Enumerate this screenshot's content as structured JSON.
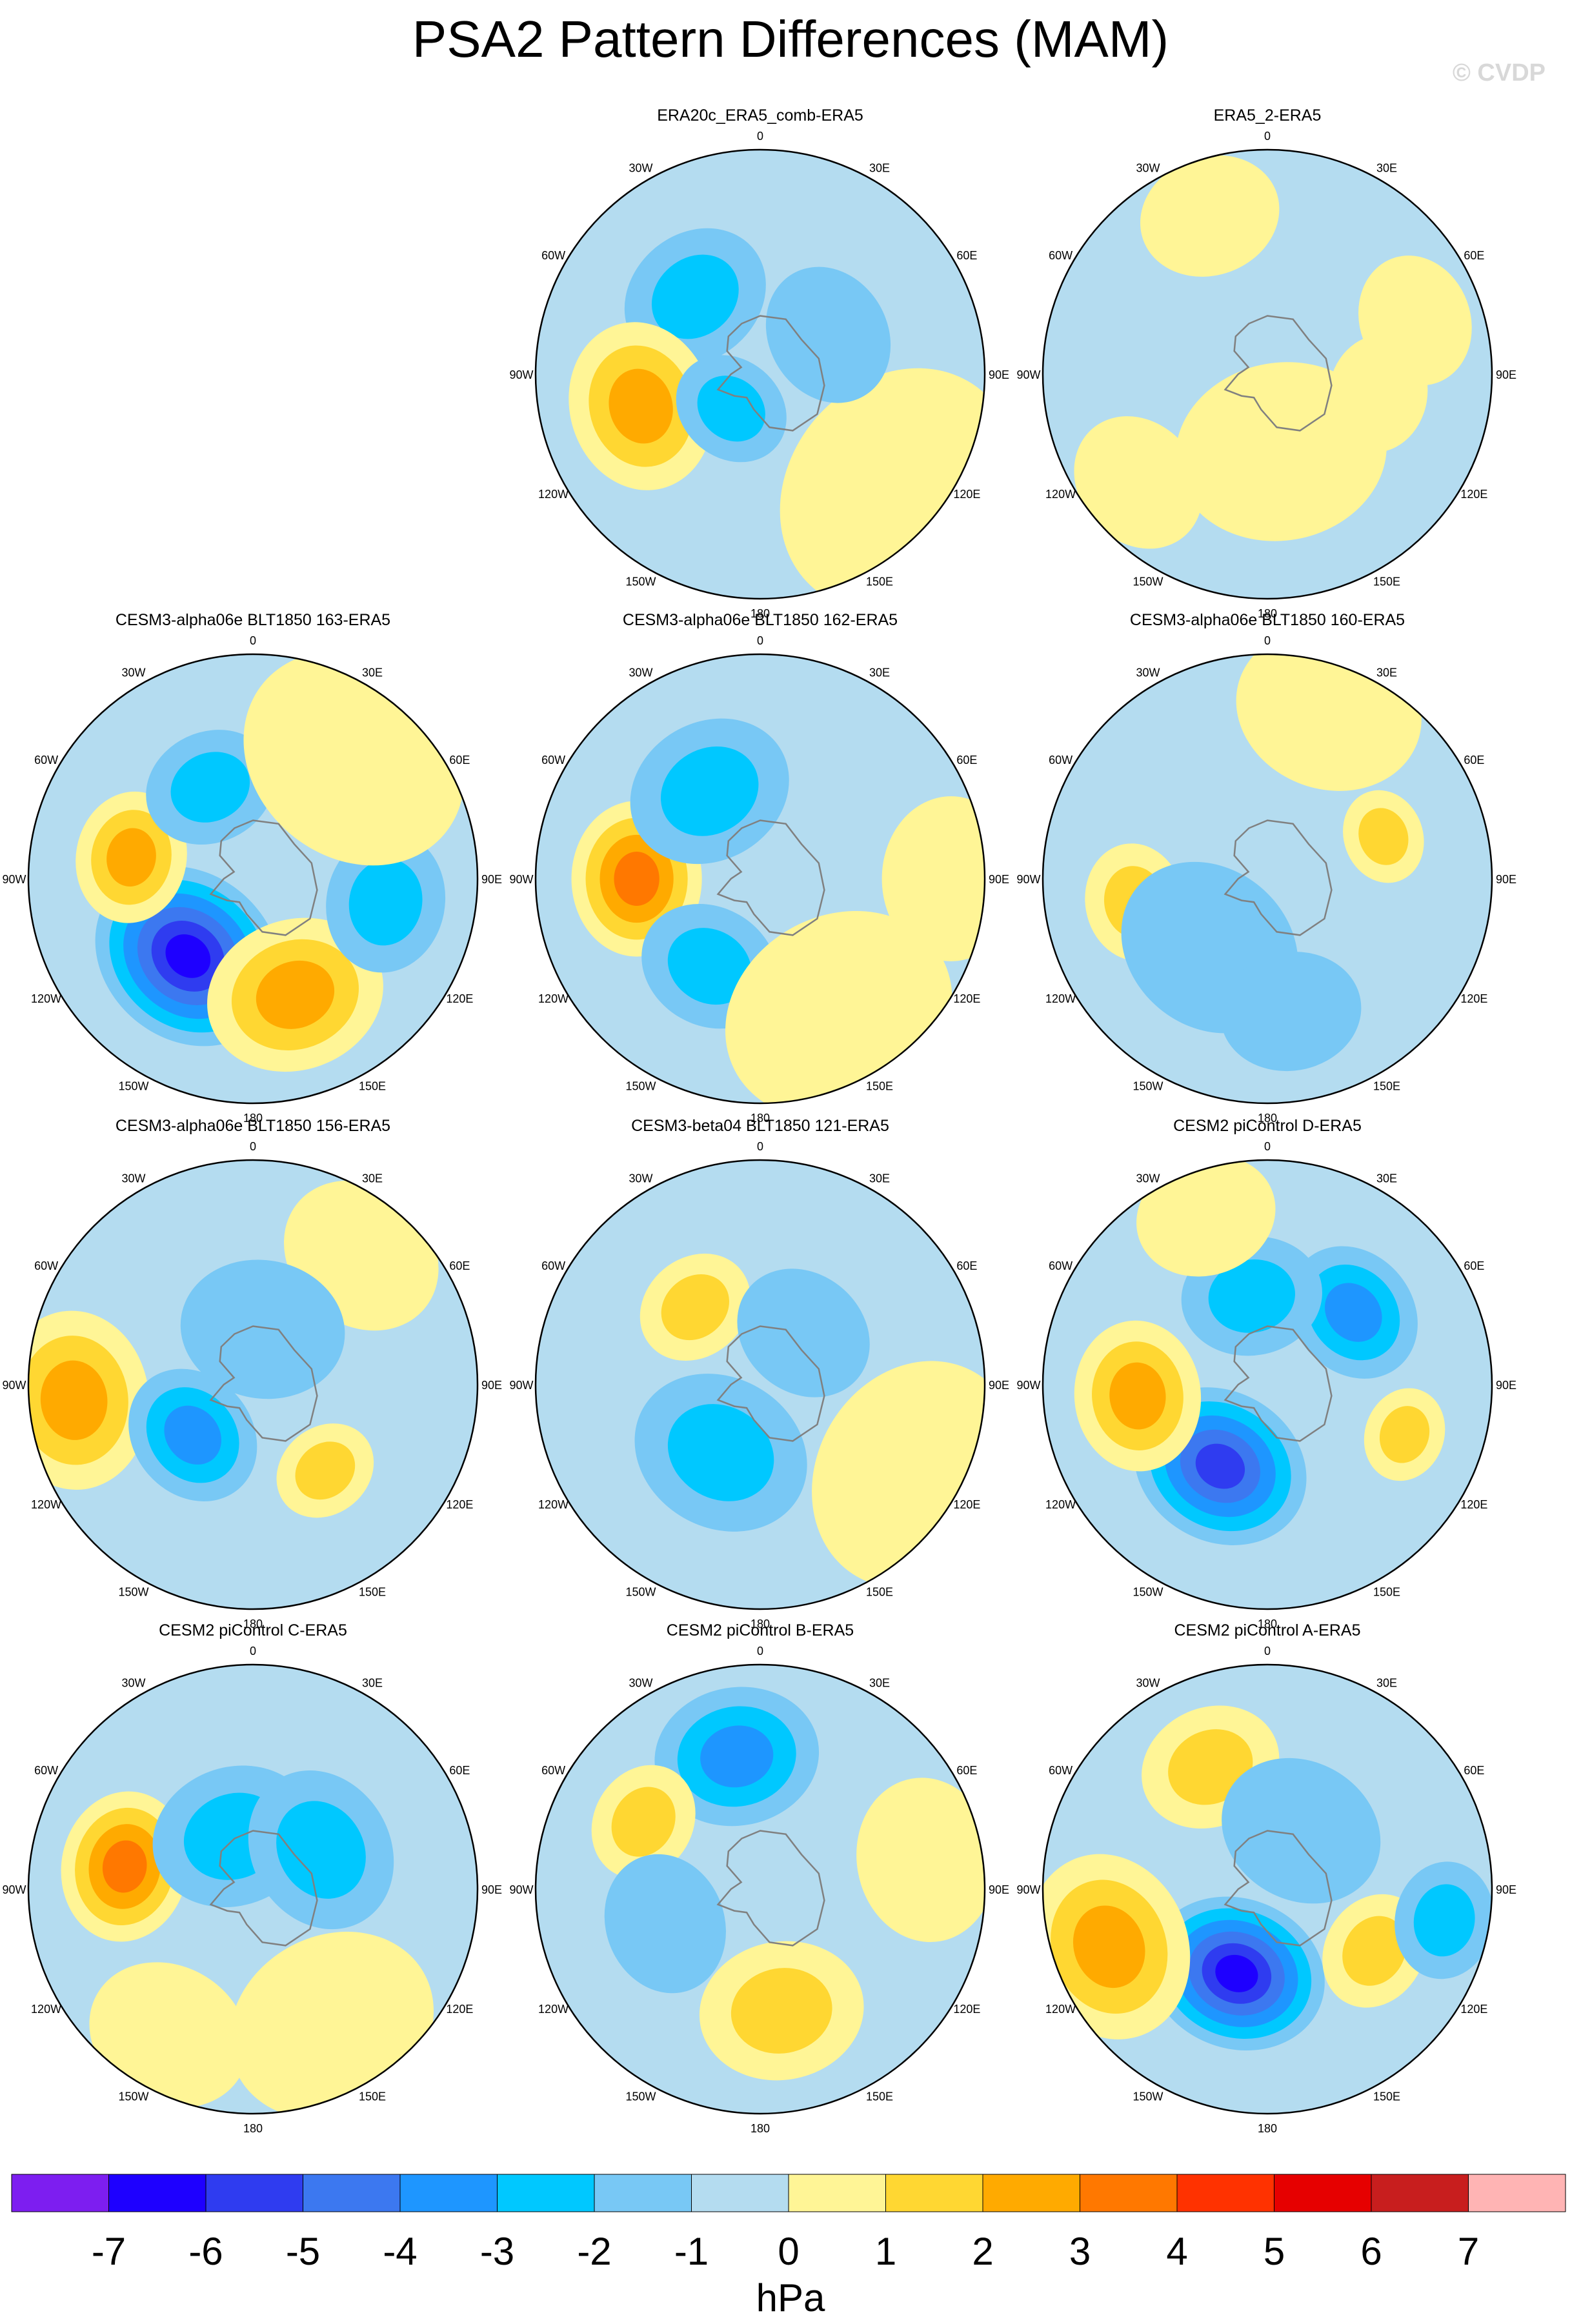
{
  "title": "PSA2 Pattern Differences (MAM)",
  "watermark": "© CVDP",
  "colorbar": {
    "unit": "hPa",
    "ticks": [
      "-7",
      "-6",
      "-5",
      "-4",
      "-3",
      "-2",
      "-1",
      "0",
      "1",
      "2",
      "3",
      "4",
      "5",
      "6",
      "7"
    ],
    "colors": [
      "#7d1ef0",
      "#1e00ff",
      "#2f3cf0",
      "#3c78f0",
      "#1e96ff",
      "#00c8ff",
      "#78c8f5",
      "#b4dcf0",
      "#fff596",
      "#ffd732",
      "#ffaa00",
      "#ff7800",
      "#ff3200",
      "#e60000",
      "#c81e1e",
      "#ffb4b4"
    ]
  },
  "lon_labels": [
    "0",
    "30E",
    "60E",
    "90E",
    "120E",
    "150E",
    "180",
    "150W",
    "120W",
    "90W",
    "60W",
    "30W"
  ],
  "chart_data": [
    {
      "type": "heatmap",
      "title": "ERA20c_ERA5_comb-ERA5",
      "position": [
        0,
        1
      ],
      "blobs": [
        [
          -2,
          0.45,
          -40,
          0.32
        ],
        [
          3,
          0.55,
          -105,
          0.36
        ],
        [
          -2,
          0.2,
          -140,
          0.25
        ],
        [
          1,
          0.8,
          130,
          0.55
        ],
        [
          -1,
          0.35,
          60,
          0.3
        ]
      ]
    },
    {
      "type": "heatmap",
      "title": "ERA5_2-ERA5",
      "position": [
        0,
        2
      ],
      "blobs": [
        [
          1,
          0.75,
          -20,
          0.3
        ],
        [
          1,
          0.7,
          70,
          0.28
        ],
        [
          1,
          0.35,
          170,
          0.45
        ],
        [
          1,
          0.75,
          -130,
          0.3
        ],
        [
          1,
          0.5,
          100,
          0.25
        ]
      ]
    },
    {
      "type": "heatmap",
      "title": "CESM3-alpha06e BLT1850 163-ERA5",
      "position": [
        1,
        0
      ],
      "blobs": [
        [
          -6,
          0.45,
          -140,
          0.42
        ],
        [
          3,
          0.55,
          -80,
          0.28
        ],
        [
          3,
          0.55,
          160,
          0.38
        ],
        [
          -2,
          0.45,
          -25,
          0.28
        ],
        [
          -2,
          0.6,
          100,
          0.3
        ],
        [
          1,
          0.7,
          40,
          0.5
        ]
      ]
    },
    {
      "type": "heatmap",
      "title": "CESM3-alpha06e BLT1850 162-ERA5",
      "position": [
        1,
        1
      ],
      "blobs": [
        [
          4,
          0.55,
          -90,
          0.33
        ],
        [
          -2,
          0.45,
          -30,
          0.35
        ],
        [
          -2,
          0.45,
          -150,
          0.3
        ],
        [
          1,
          0.7,
          150,
          0.5
        ],
        [
          1,
          0.85,
          90,
          0.35
        ]
      ]
    },
    {
      "type": "heatmap",
      "title": "CESM3-alpha06e BLT1850 160-ERA5",
      "position": [
        1,
        2
      ],
      "blobs": [
        [
          2,
          0.6,
          -100,
          0.25
        ],
        [
          2,
          0.55,
          70,
          0.2
        ],
        [
          -1,
          0.4,
          -140,
          0.4
        ],
        [
          -1,
          0.6,
          170,
          0.3
        ],
        [
          1,
          0.8,
          20,
          0.4
        ]
      ]
    },
    {
      "type": "heatmap",
      "title": "CESM3-alpha06e BLT1850 156-ERA5",
      "position": [
        2,
        0
      ],
      "blobs": [
        [
          3,
          0.8,
          -95,
          0.38
        ],
        [
          -3,
          0.35,
          -130,
          0.3
        ],
        [
          2,
          0.5,
          140,
          0.22
        ],
        [
          1,
          0.75,
          40,
          0.35
        ],
        [
          -1,
          0.25,
          10,
          0.35
        ]
      ]
    },
    {
      "type": "heatmap",
      "title": "CESM3-beta04 BLT1850 121-ERA5",
      "position": [
        2,
        1
      ],
      "blobs": [
        [
          -2,
          0.35,
          -150,
          0.38
        ],
        [
          2,
          0.45,
          -40,
          0.25
        ],
        [
          1,
          0.8,
          120,
          0.5
        ],
        [
          -1,
          0.3,
          40,
          0.3
        ]
      ]
    },
    {
      "type": "heatmap",
      "title": "CESM2 piControl D-ERA5",
      "position": [
        2,
        2
      ],
      "blobs": [
        [
          -5,
          0.42,
          -150,
          0.38
        ],
        [
          3,
          0.58,
          -95,
          0.32
        ],
        [
          -3,
          0.5,
          50,
          0.3
        ],
        [
          -2,
          0.4,
          -10,
          0.3
        ],
        [
          2,
          0.65,
          110,
          0.2
        ],
        [
          1,
          0.8,
          -20,
          0.3
        ]
      ]
    },
    {
      "type": "heatmap",
      "title": "CESM2 piControl C-ERA5",
      "position": [
        3,
        0
      ],
      "blobs": [
        [
          4,
          0.58,
          -80,
          0.32
        ],
        [
          -2,
          0.25,
          -20,
          0.35
        ],
        [
          -2,
          0.35,
          60,
          0.35
        ],
        [
          1,
          0.7,
          150,
          0.45
        ],
        [
          1,
          0.75,
          -150,
          0.35
        ]
      ]
    },
    {
      "type": "heatmap",
      "title": "CESM2 piControl B-ERA5",
      "position": [
        3,
        1
      ],
      "blobs": [
        [
          -3,
          0.6,
          -10,
          0.35
        ],
        [
          2,
          0.6,
          -60,
          0.25
        ],
        [
          2,
          0.55,
          170,
          0.35
        ],
        [
          -1,
          0.45,
          -110,
          0.3
        ],
        [
          1,
          0.75,
          80,
          0.35
        ]
      ]
    },
    {
      "type": "heatmap",
      "title": "CESM2 piControl A-ERA5",
      "position": [
        3,
        2
      ],
      "blobs": [
        [
          -6,
          0.4,
          -160,
          0.38
        ],
        [
          3,
          0.75,
          -110,
          0.4
        ],
        [
          2,
          0.6,
          -25,
          0.3
        ],
        [
          2,
          0.55,
          120,
          0.25
        ],
        [
          -2,
          0.8,
          100,
          0.25
        ],
        [
          -1,
          0.3,
          30,
          0.35
        ]
      ]
    }
  ]
}
